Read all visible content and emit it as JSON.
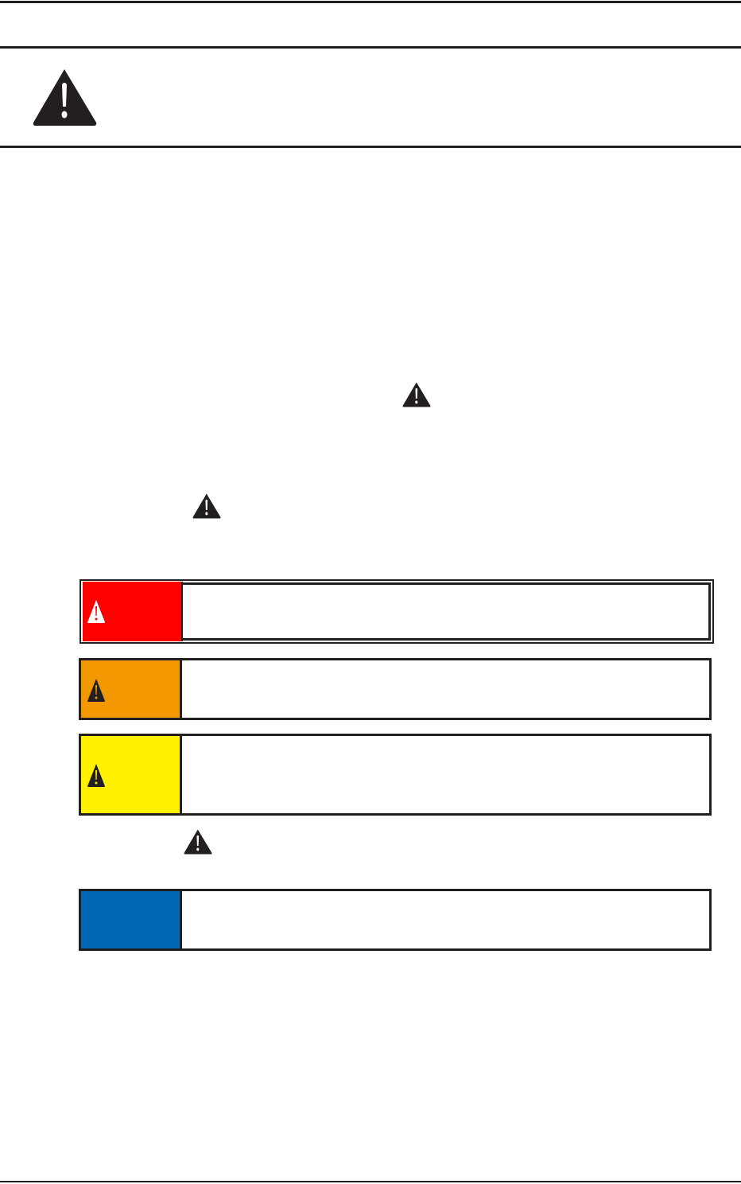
{
  "colors": {
    "danger": "#ff0000",
    "warning": "#f39800",
    "caution": "#fff100",
    "notice": "#0068b7",
    "ink": "#231f20"
  },
  "icons": {
    "header": "warning-triangle-icon",
    "inline": "warning-triangle-icon"
  }
}
